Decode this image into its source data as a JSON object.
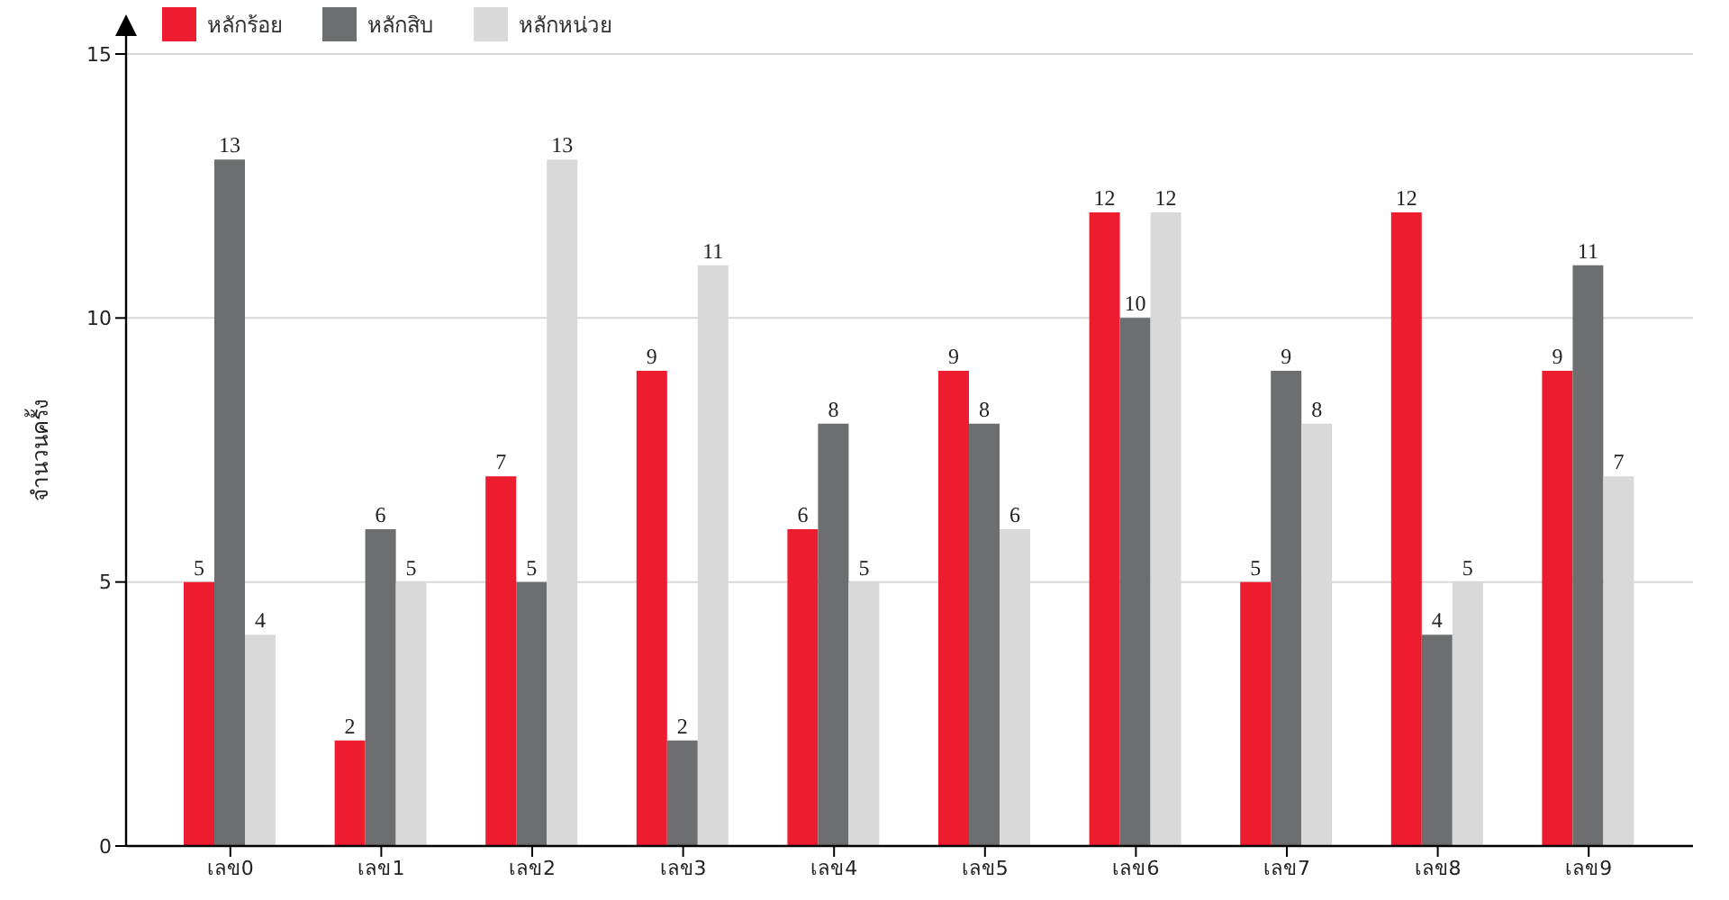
{
  "chart_data": {
    "type": "bar",
    "ylabel": "จำนวนครั้ง",
    "categories": [
      "เลข0",
      "เลข1",
      "เลข2",
      "เลข3",
      "เลข4",
      "เลข5",
      "เลข6",
      "เลข7",
      "เลข8",
      "เลข9"
    ],
    "series": [
      {
        "name": "หลักร้อย",
        "color": "#ed1c2e",
        "values": [
          5,
          2,
          7,
          9,
          6,
          9,
          12,
          5,
          12,
          9
        ]
      },
      {
        "name": "หลักสิบ",
        "color": "#6d6e70",
        "values": [
          13,
          6,
          5,
          2,
          8,
          8,
          10,
          9,
          4,
          11
        ]
      },
      {
        "name": "หลักหน่วย",
        "color": "#d9d9d9",
        "values": [
          4,
          5,
          13,
          11,
          5,
          6,
          12,
          8,
          5,
          7
        ]
      }
    ],
    "ylim": [
      0,
      15
    ],
    "yticks": [
      0,
      5,
      10,
      15
    ],
    "grid": "y",
    "legend": "top left",
    "data_labels": true
  }
}
